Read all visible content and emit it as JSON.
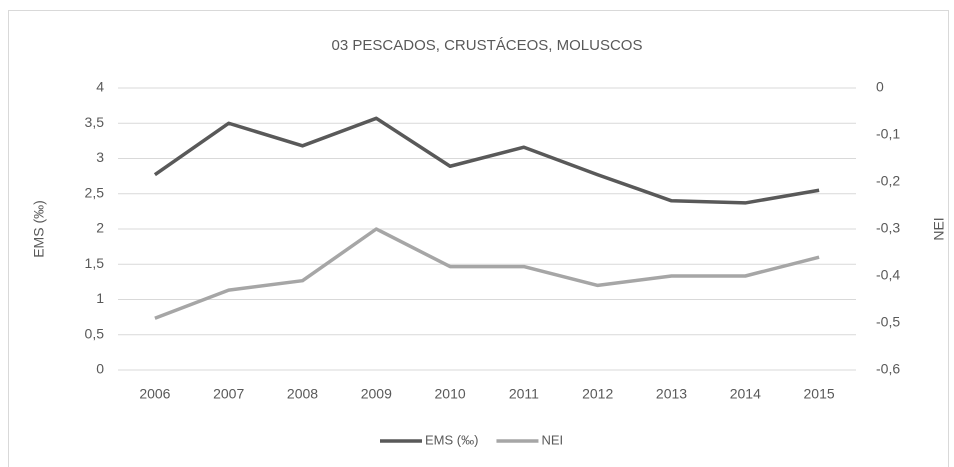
{
  "chart_data": {
    "type": "line",
    "title": "03 PESCADOS, CRUSTÁCEOS, MOLUSCOS",
    "ylabel": "EMS (‰)",
    "y2label": "NEI",
    "categories": [
      "2006",
      "2007",
      "2008",
      "2009",
      "2010",
      "2011",
      "2012",
      "2013",
      "2014",
      "2015"
    ],
    "series": [
      {
        "name": "EMS (‰)",
        "color": "#595959",
        "values": [
          2.77,
          3.5,
          3.18,
          3.57,
          2.89,
          3.16,
          2.77,
          2.4,
          2.37,
          2.55
        ]
      },
      {
        "name": "NEI",
        "color": "#a6a6a6",
        "axis": "y2",
        "values": [
          -0.49,
          -0.43,
          -0.41,
          -0.3,
          -0.38,
          -0.38,
          -0.42,
          -0.4,
          -0.4,
          -0.36
        ]
      }
    ],
    "ylim": [
      0,
      4
    ],
    "yticks": [
      0,
      {
        "value": 0.5,
        "label": "0,5"
      },
      1,
      {
        "value": 1.5,
        "label": "1,5"
      },
      2,
      {
        "value": 2.5,
        "label": "2,5"
      },
      3,
      {
        "value": 3.5,
        "label": "3,5"
      },
      4
    ],
    "y2lim": [
      -0.6,
      0
    ],
    "y2ticks": [
      {
        "value": -0.6,
        "label": "-0,6"
      },
      {
        "value": -0.5,
        "label": "-0,5"
      },
      {
        "value": -0.4,
        "label": "-0,4"
      },
      {
        "value": -0.3,
        "label": "-0,3"
      },
      {
        "value": -0.2,
        "label": "-0,2"
      },
      {
        "value": -0.1,
        "label": "-0,1"
      },
      0
    ],
    "grid": true,
    "legend": "bottom"
  }
}
